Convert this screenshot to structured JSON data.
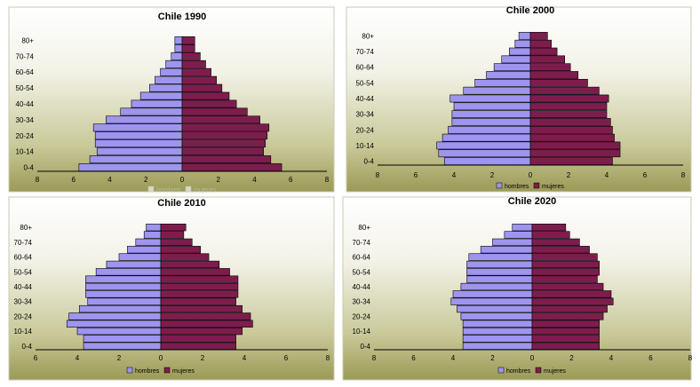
{
  "chart_data": [
    {
      "type": "bar",
      "orientation": "horizontal-population-pyramid",
      "title": "Chile 1990",
      "categories": [
        "0-4",
        "5-9",
        "10-14",
        "15-19",
        "20-24",
        "25-29",
        "30-34",
        "35-39",
        "40-44",
        "45-49",
        "50-54",
        "55-59",
        "60-64",
        "65-69",
        "70-74",
        "75-79",
        "80+"
      ],
      "y_tick_labels": [
        "0-4",
        "10-14",
        "20-24",
        "30-34",
        "40-44",
        "50-54",
        "60-64",
        "70-74",
        "80+"
      ],
      "x_tick_labels": [
        "8",
        "6",
        "4",
        "2",
        "0",
        "2",
        "4",
        "6",
        "8"
      ],
      "xlim": [
        -8,
        8
      ],
      "series": [
        {
          "name": "hombres",
          "color": "#9e95ee",
          "values": [
            5.7,
            5.1,
            4.7,
            4.8,
            4.8,
            4.9,
            4.2,
            3.4,
            2.8,
            2.3,
            1.8,
            1.5,
            1.2,
            0.9,
            0.6,
            0.4,
            0.4
          ]
        },
        {
          "name": "mujeres",
          "color": "#7d1d4d",
          "values": [
            5.5,
            4.9,
            4.5,
            4.6,
            4.7,
            4.8,
            4.3,
            3.6,
            3.0,
            2.6,
            2.2,
            1.9,
            1.6,
            1.3,
            1.0,
            0.7,
            0.7
          ]
        }
      ],
      "legend": {
        "position": "bottom",
        "labels": [
          "hombres",
          "mujeres"
        ],
        "faint": true
      }
    },
    {
      "type": "bar",
      "orientation": "horizontal-population-pyramid",
      "title": "Chile 2000",
      "categories": [
        "0-4",
        "5-9",
        "10-14",
        "15-19",
        "20-24",
        "25-29",
        "30-34",
        "35-39",
        "40-44",
        "45-49",
        "50-54",
        "55-59",
        "60-64",
        "65-69",
        "70-74",
        "75-79",
        "80+"
      ],
      "y_tick_labels": [
        "0-4",
        "10-14",
        "20-24",
        "30-34",
        "40-44",
        "50-54",
        "60-64",
        "70-74",
        "80+"
      ],
      "x_tick_labels": [
        "8",
        "6",
        "4",
        "2",
        "0",
        "2",
        "4",
        "6",
        "8"
      ],
      "xlim": [
        -8,
        8
      ],
      "series": [
        {
          "name": "hombres",
          "color": "#9e95ee",
          "values": [
            4.5,
            4.8,
            4.9,
            4.6,
            4.3,
            4.1,
            4.1,
            4.0,
            4.2,
            3.5,
            2.9,
            2.3,
            1.9,
            1.5,
            1.1,
            0.8,
            0.6
          ]
        },
        {
          "name": "mujeres",
          "color": "#7d1d4d",
          "values": [
            4.3,
            4.7,
            4.7,
            4.4,
            4.3,
            4.2,
            4.0,
            4.0,
            4.1,
            3.6,
            3.0,
            2.5,
            2.1,
            1.8,
            1.4,
            1.1,
            0.9
          ]
        }
      ],
      "legend": {
        "position": "bottom",
        "labels": [
          "hombres",
          "mujeres"
        ]
      }
    },
    {
      "type": "bar",
      "orientation": "horizontal-population-pyramid",
      "title": "Chile 2010",
      "categories": [
        "0-4",
        "5-9",
        "10-14",
        "15-19",
        "20-24",
        "25-29",
        "30-34",
        "35-39",
        "40-44",
        "45-49",
        "50-54",
        "55-59",
        "60-64",
        "65-69",
        "70-74",
        "75-79",
        "80+"
      ],
      "y_tick_labels": [
        "0-4",
        "10-14",
        "20-24",
        "30-34",
        "40-44",
        "50-54",
        "60-64",
        "70-74",
        "80+"
      ],
      "x_tick_labels": [
        "6",
        "4",
        "2",
        "0",
        "2",
        "4",
        "6",
        "8"
      ],
      "xlim": [
        -6,
        8
      ],
      "series": [
        {
          "name": "hombres",
          "color": "#9e95ee",
          "values": [
            3.7,
            3.7,
            4.0,
            4.5,
            4.4,
            3.9,
            3.5,
            3.6,
            3.6,
            3.6,
            3.1,
            2.6,
            2.0,
            1.6,
            1.2,
            0.8,
            0.7
          ]
        },
        {
          "name": "mujeres",
          "color": "#7d1d4d",
          "values": [
            3.6,
            3.6,
            3.9,
            4.4,
            4.3,
            3.9,
            3.6,
            3.7,
            3.7,
            3.7,
            3.3,
            2.8,
            2.3,
            1.9,
            1.5,
            1.1,
            1.2
          ]
        }
      ],
      "legend": {
        "position": "bottom",
        "labels": [
          "hombres",
          "mujeres"
        ]
      }
    },
    {
      "type": "bar",
      "orientation": "horizontal-population-pyramid",
      "title": "Chile 2020",
      "categories": [
        "0-4",
        "5-9",
        "10-14",
        "15-19",
        "20-24",
        "25-29",
        "30-34",
        "35-39",
        "40-44",
        "45-49",
        "50-54",
        "55-59",
        "60-64",
        "65-69",
        "70-74",
        "75-79",
        "80+"
      ],
      "y_tick_labels": [
        "0-4",
        "10-14",
        "20-24",
        "30-34",
        "40-44",
        "50-54",
        "60-64",
        "70-74",
        "80+"
      ],
      "x_tick_labels": [
        "8",
        "6",
        "4",
        "2",
        "0",
        "2",
        "4",
        "6",
        "8"
      ],
      "xlim": [
        -8,
        8
      ],
      "series": [
        {
          "name": "hombres",
          "color": "#9e95ee",
          "values": [
            3.5,
            3.5,
            3.5,
            3.5,
            3.6,
            3.8,
            4.1,
            4.0,
            3.6,
            3.3,
            3.3,
            3.3,
            3.2,
            2.6,
            2.0,
            1.4,
            1.0
          ]
        },
        {
          "name": "mujeres",
          "color": "#7d1d4d",
          "values": [
            3.4,
            3.4,
            3.4,
            3.4,
            3.6,
            3.8,
            4.1,
            4.0,
            3.6,
            3.3,
            3.4,
            3.4,
            3.3,
            2.9,
            2.4,
            1.9,
            1.7
          ]
        }
      ],
      "legend": {
        "position": "bottom",
        "labels": [
          "hombres",
          "mujeres"
        ]
      }
    }
  ]
}
